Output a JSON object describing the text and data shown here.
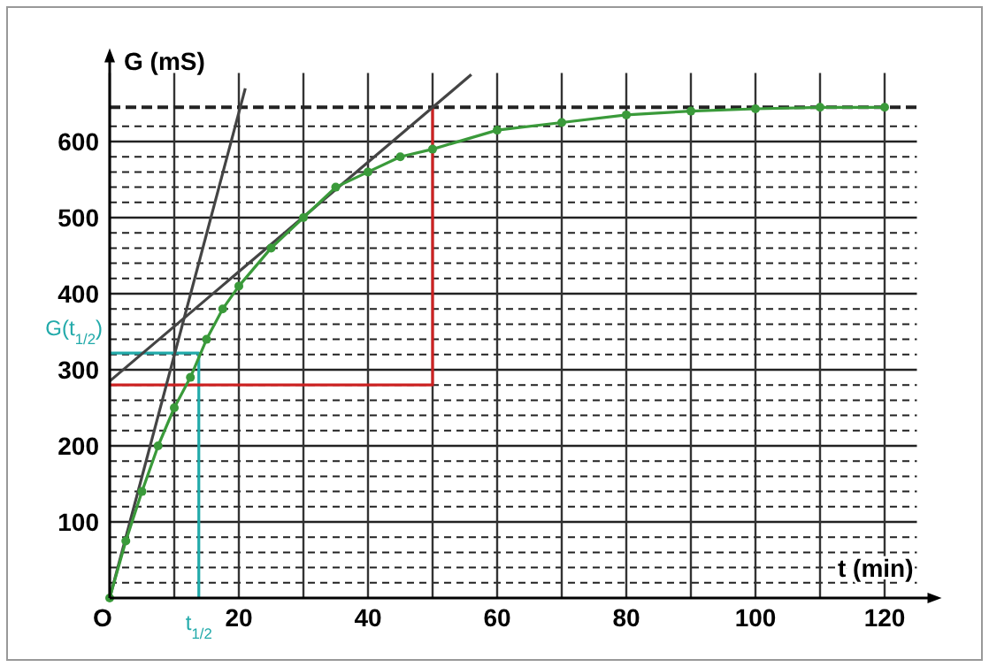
{
  "chart_data": {
    "type": "line",
    "xlabel": "t (min)",
    "ylabel": "G (mS)",
    "xlim": [
      0,
      125
    ],
    "ylim": [
      0,
      690
    ],
    "xticks": [
      {
        "value": 0,
        "label": "O"
      },
      {
        "value": 10,
        "label": null
      },
      20,
      {
        "value": 30,
        "label": null
      },
      40,
      {
        "value": 50,
        "label": null
      },
      60,
      {
        "value": 70,
        "label": null
      },
      80,
      {
        "value": 90,
        "label": null
      },
      100,
      {
        "value": 110,
        "label": null
      },
      120
    ],
    "yticks": [
      {
        "value": 20,
        "label": null
      },
      {
        "value": 40,
        "label": null
      },
      {
        "value": 60,
        "label": null
      },
      {
        "value": 80,
        "label": null
      },
      100,
      {
        "value": 120,
        "label": null
      },
      {
        "value": 140,
        "label": null
      },
      {
        "value": 160,
        "label": null
      },
      {
        "value": 180,
        "label": null
      },
      200,
      {
        "value": 220,
        "label": null
      },
      {
        "value": 240,
        "label": null
      },
      {
        "value": 260,
        "label": null
      },
      {
        "value": 280,
        "label": null
      },
      300,
      {
        "value": 320,
        "label": null
      },
      {
        "value": 340,
        "label": null
      },
      {
        "value": 360,
        "label": null
      },
      {
        "value": 380,
        "label": null
      },
      400,
      {
        "value": 420,
        "label": null
      },
      {
        "value": 440,
        "label": null
      },
      {
        "value": 460,
        "label": null
      },
      {
        "value": 480,
        "label": null
      },
      500,
      {
        "value": 520,
        "label": null
      },
      {
        "value": 540,
        "label": null
      },
      {
        "value": 560,
        "label": null
      },
      {
        "value": 580,
        "label": null
      },
      600,
      {
        "value": 620,
        "label": null
      }
    ],
    "grid": true,
    "ref_lines": [
      {
        "axis": "y",
        "value": 645,
        "line_style": "dashed",
        "color": "#222222"
      }
    ],
    "series": [
      {
        "color": "#3a9a3a",
        "marker": "circle",
        "x": [
          0,
          2.5,
          5,
          7.5,
          10,
          12.5,
          15,
          17.5,
          20,
          25,
          30,
          35,
          40,
          45,
          50,
          60,
          70,
          80,
          90,
          100,
          110,
          120
        ],
        "values": [
          0,
          75,
          140,
          200,
          250,
          290,
          340,
          380,
          410,
          460,
          500,
          540,
          560,
          580,
          590,
          615,
          625,
          635,
          640,
          643,
          645,
          645
        ]
      },
      {
        "color": "#444444",
        "marker": "none",
        "x": [
          0,
          21
        ],
        "values": [
          0,
          670
        ]
      },
      {
        "color": "#444444",
        "marker": "none",
        "x": [
          0,
          56
        ],
        "values": [
          285,
          688
        ]
      },
      {
        "color": "#cc2222",
        "marker": "none",
        "x": [
          0,
          50,
          50
        ],
        "values": [
          280,
          280,
          645
        ]
      },
      {
        "color": "#22aaaa",
        "marker": "none",
        "x": [
          0,
          13.8,
          13.8
        ],
        "values": [
          322,
          322,
          0
        ]
      }
    ],
    "annotations": [
      {
        "text": "G(t$_{1/2}$)",
        "x": 0,
        "y": 322
      },
      {
        "text": "t$_{1/2}$",
        "x": 13.8,
        "y": 0
      }
    ]
  }
}
